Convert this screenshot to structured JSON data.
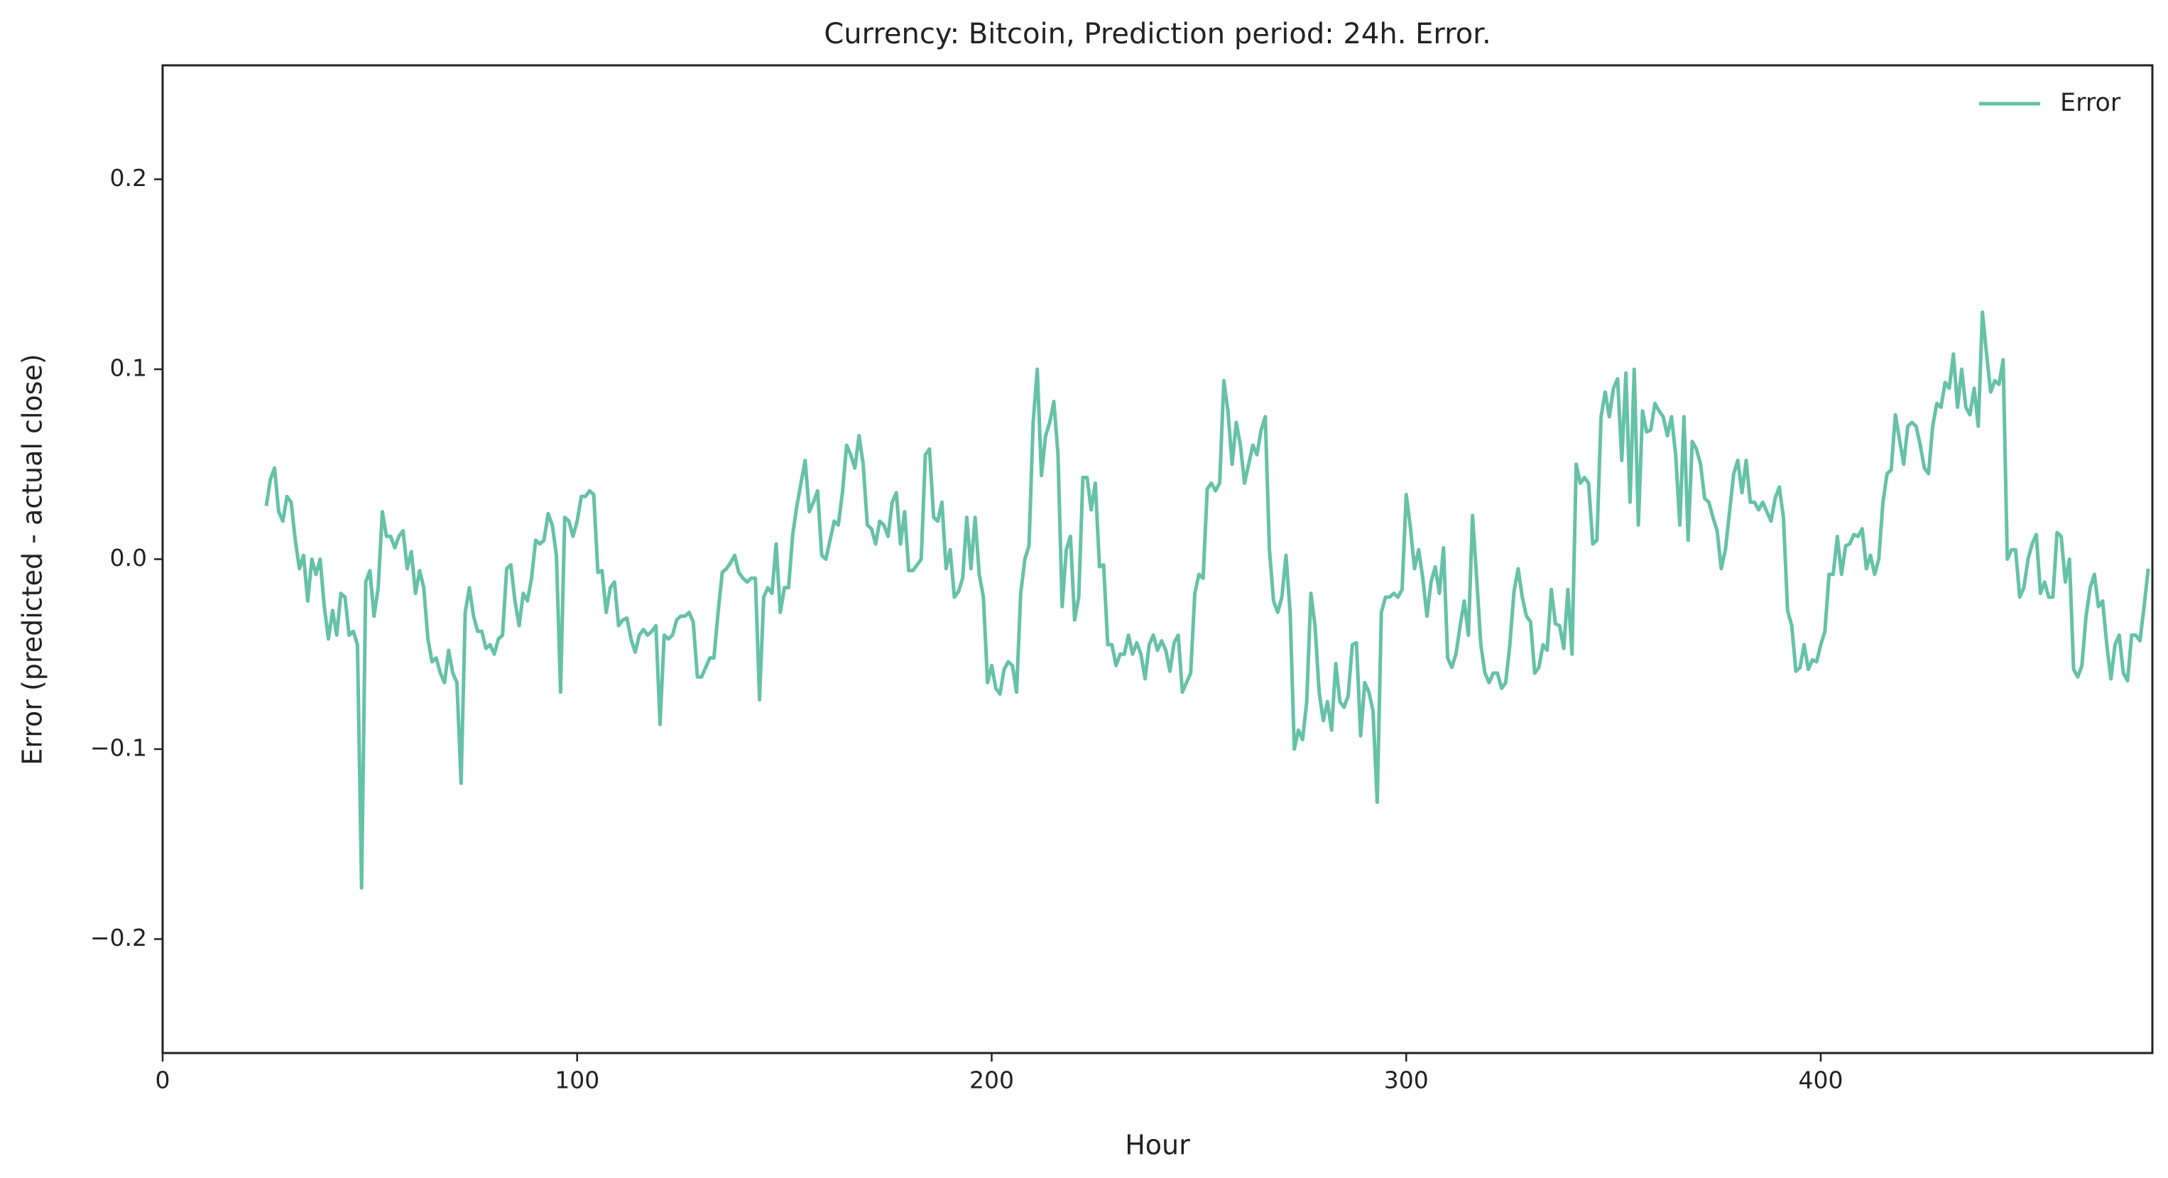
{
  "chart_data": {
    "type": "line",
    "title": "Currency: Bitcoin, Prediction period: 24h. Error.",
    "x_label": "Hour",
    "y_label": "Error (predicted - actual close)",
    "x": [
      25,
      26,
      27,
      28,
      29,
      30,
      31,
      32,
      33,
      34,
      35,
      36,
      37,
      38,
      39,
      40,
      41,
      42,
      43,
      44,
      45,
      46,
      47,
      48,
      49,
      50,
      51,
      52,
      53,
      54,
      55,
      56,
      57,
      58,
      59,
      60,
      61,
      62,
      63,
      64,
      65,
      66,
      67,
      68,
      69,
      70,
      71,
      72,
      73,
      74,
      75,
      76,
      77,
      78,
      79,
      80,
      81,
      82,
      83,
      84,
      85,
      86,
      87,
      88,
      89,
      90,
      91,
      92,
      93,
      94,
      95,
      96,
      97,
      98,
      99,
      100,
      101,
      102,
      103,
      104,
      105,
      106,
      107,
      108,
      109,
      110,
      111,
      112,
      113,
      114,
      115,
      116,
      117,
      118,
      119,
      120,
      121,
      122,
      123,
      124,
      125,
      126,
      127,
      128,
      129,
      130,
      131,
      132,
      133,
      134,
      135,
      136,
      137,
      138,
      139,
      140,
      141,
      142,
      143,
      144,
      145,
      146,
      147,
      148,
      149,
      150,
      151,
      152,
      153,
      154,
      155,
      156,
      157,
      158,
      159,
      160,
      161,
      162,
      163,
      164,
      165,
      166,
      167,
      168,
      169,
      170,
      171,
      172,
      173,
      174,
      175,
      176,
      177,
      178,
      179,
      180,
      181,
      182,
      183,
      184,
      185,
      186,
      187,
      188,
      189,
      190,
      191,
      192,
      193,
      194,
      195,
      196,
      197,
      198,
      199,
      200,
      201,
      202,
      203,
      204,
      205,
      206,
      207,
      208,
      209,
      210,
      211,
      212,
      213,
      214,
      215,
      216,
      217,
      218,
      219,
      220,
      221,
      222,
      223,
      224,
      225,
      226,
      227,
      228,
      229,
      230,
      231,
      232,
      233,
      234,
      235,
      236,
      237,
      238,
      239,
      240,
      241,
      242,
      243,
      244,
      245,
      246,
      247,
      248,
      249,
      250,
      251,
      252,
      253,
      254,
      255,
      256,
      257,
      258,
      259,
      260,
      261,
      262,
      263,
      264,
      265,
      266,
      267,
      268,
      269,
      270,
      271,
      272,
      273,
      274,
      275,
      276,
      277,
      278,
      279,
      280,
      281,
      282,
      283,
      284,
      285,
      286,
      287,
      288,
      289,
      290,
      291,
      292,
      293,
      294,
      295,
      296,
      297,
      298,
      299,
      300,
      301,
      302,
      303,
      304,
      305,
      306,
      307,
      308,
      309,
      310,
      311,
      312,
      313,
      314,
      315,
      316,
      317,
      318,
      319,
      320,
      321,
      322,
      323,
      324,
      325,
      326,
      327,
      328,
      329,
      330,
      331,
      332,
      333,
      334,
      335,
      336,
      337,
      338,
      339,
      340,
      341,
      342,
      343,
      344,
      345,
      346,
      347,
      348,
      349,
      350,
      351,
      352,
      353,
      354,
      355,
      356,
      357,
      358,
      359,
      360,
      361,
      362,
      363,
      364,
      365,
      366,
      367,
      368,
      369,
      370,
      371,
      372,
      373,
      374,
      375,
      376,
      377,
      378,
      379,
      380,
      381,
      382,
      383,
      384,
      385,
      386,
      387,
      388,
      389,
      390,
      391,
      392,
      393,
      394,
      395,
      396,
      397,
      398,
      399,
      400,
      401,
      402,
      403,
      404,
      405,
      406,
      407,
      408,
      409,
      410,
      411,
      412,
      413,
      414,
      415,
      416,
      417,
      418,
      419,
      420,
      421,
      422,
      423,
      424,
      425,
      426,
      427,
      428,
      429,
      430,
      431,
      432,
      433,
      434,
      435,
      436,
      437,
      438,
      439,
      440,
      441,
      442,
      443,
      444,
      445,
      446,
      447,
      448,
      449,
      450,
      451,
      452,
      453,
      454,
      455,
      456,
      457,
      458,
      459,
      460,
      461,
      462,
      463,
      464,
      465,
      466,
      467,
      468,
      469,
      470,
      471,
      472,
      473,
      474,
      475,
      476,
      477,
      478,
      479
    ],
    "series": [
      {
        "name": "Error",
        "color": "#66c2a5",
        "values": [
          0.028,
          0.042,
          0.048,
          0.025,
          0.02,
          0.033,
          0.03,
          0.01,
          -0.005,
          0.002,
          -0.022,
          0.0,
          -0.008,
          0.0,
          -0.025,
          -0.042,
          -0.027,
          -0.04,
          -0.018,
          -0.02,
          -0.04,
          -0.038,
          -0.045,
          -0.173,
          -0.012,
          -0.006,
          -0.03,
          -0.015,
          0.025,
          0.012,
          0.012,
          0.006,
          0.012,
          0.015,
          -0.005,
          0.004,
          -0.018,
          -0.006,
          -0.015,
          -0.042,
          -0.054,
          -0.052,
          -0.06,
          -0.065,
          -0.048,
          -0.06,
          -0.065,
          -0.118,
          -0.028,
          -0.015,
          -0.03,
          -0.038,
          -0.038,
          -0.047,
          -0.045,
          -0.05,
          -0.042,
          -0.04,
          -0.005,
          -0.003,
          -0.022,
          -0.035,
          -0.018,
          -0.022,
          -0.01,
          0.01,
          0.008,
          0.01,
          0.024,
          0.018,
          0.002,
          -0.07,
          0.022,
          0.02,
          0.012,
          0.02,
          0.033,
          0.033,
          0.036,
          0.034,
          -0.007,
          -0.006,
          -0.028,
          -0.015,
          -0.012,
          -0.035,
          -0.032,
          -0.031,
          -0.042,
          -0.049,
          -0.04,
          -0.037,
          -0.04,
          -0.038,
          -0.035,
          -0.087,
          -0.04,
          -0.042,
          -0.04,
          -0.032,
          -0.03,
          -0.03,
          -0.028,
          -0.033,
          -0.062,
          -0.062,
          -0.057,
          -0.052,
          -0.052,
          -0.028,
          -0.007,
          -0.005,
          -0.002,
          0.002,
          -0.007,
          -0.01,
          -0.012,
          -0.01,
          -0.01,
          -0.074,
          -0.02,
          -0.015,
          -0.018,
          0.008,
          -0.028,
          -0.015,
          -0.015,
          0.013,
          0.028,
          0.04,
          0.052,
          0.025,
          0.03,
          0.036,
          0.002,
          0.0,
          0.01,
          0.02,
          0.018,
          0.035,
          0.06,
          0.055,
          0.048,
          0.065,
          0.05,
          0.018,
          0.016,
          0.008,
          0.02,
          0.018,
          0.012,
          0.03,
          0.035,
          0.008,
          0.025,
          -0.006,
          -0.006,
          -0.003,
          0.0,
          0.055,
          0.058,
          0.022,
          0.02,
          0.03,
          -0.005,
          0.005,
          -0.02,
          -0.017,
          -0.01,
          0.022,
          -0.005,
          0.022,
          -0.008,
          -0.02,
          -0.065,
          -0.056,
          -0.068,
          -0.071,
          -0.058,
          -0.054,
          -0.056,
          -0.07,
          -0.018,
          0.0,
          0.007,
          0.072,
          0.1,
          0.044,
          0.065,
          0.072,
          0.083,
          0.055,
          -0.025,
          0.005,
          0.012,
          -0.032,
          -0.02,
          0.043,
          0.043,
          0.026,
          0.04,
          -0.004,
          -0.003,
          -0.045,
          -0.045,
          -0.056,
          -0.05,
          -0.05,
          -0.04,
          -0.05,
          -0.044,
          -0.05,
          -0.063,
          -0.045,
          -0.04,
          -0.048,
          -0.043,
          -0.048,
          -0.059,
          -0.044,
          -0.04,
          -0.07,
          -0.065,
          -0.06,
          -0.018,
          -0.008,
          -0.01,
          0.037,
          0.04,
          0.036,
          0.04,
          0.094,
          0.078,
          0.05,
          0.072,
          0.06,
          0.04,
          0.05,
          0.06,
          0.055,
          0.068,
          0.075,
          0.005,
          -0.022,
          -0.028,
          -0.02,
          0.002,
          -0.028,
          -0.1,
          -0.09,
          -0.095,
          -0.075,
          -0.018,
          -0.035,
          -0.07,
          -0.085,
          -0.075,
          -0.09,
          -0.055,
          -0.075,
          -0.078,
          -0.072,
          -0.045,
          -0.044,
          -0.093,
          -0.065,
          -0.07,
          -0.08,
          -0.128,
          -0.028,
          -0.02,
          -0.02,
          -0.018,
          -0.02,
          -0.016,
          0.034,
          0.017,
          -0.005,
          0.005,
          -0.01,
          -0.03,
          -0.012,
          -0.004,
          -0.018,
          0.006,
          -0.052,
          -0.057,
          -0.05,
          -0.035,
          -0.022,
          -0.04,
          0.023,
          -0.01,
          -0.045,
          -0.06,
          -0.065,
          -0.06,
          -0.06,
          -0.068,
          -0.065,
          -0.045,
          -0.017,
          -0.005,
          -0.02,
          -0.03,
          -0.033,
          -0.06,
          -0.057,
          -0.045,
          -0.048,
          -0.016,
          -0.034,
          -0.035,
          -0.047,
          -0.016,
          -0.05,
          0.05,
          0.04,
          0.043,
          0.04,
          0.008,
          0.01,
          0.075,
          0.088,
          0.075,
          0.09,
          0.095,
          0.052,
          0.098,
          0.03,
          0.1,
          0.018,
          0.078,
          0.067,
          0.068,
          0.082,
          0.078,
          0.075,
          0.065,
          0.075,
          0.055,
          0.018,
          0.075,
          0.01,
          0.062,
          0.058,
          0.05,
          0.032,
          0.03,
          0.022,
          0.015,
          -0.005,
          0.005,
          0.025,
          0.045,
          0.052,
          0.035,
          0.052,
          0.03,
          0.03,
          0.026,
          0.03,
          0.025,
          0.02,
          0.032,
          0.038,
          0.022,
          -0.027,
          -0.035,
          -0.059,
          -0.057,
          -0.045,
          -0.058,
          -0.053,
          -0.054,
          -0.045,
          -0.038,
          -0.008,
          -0.008,
          0.012,
          -0.008,
          0.007,
          0.008,
          0.013,
          0.012,
          0.016,
          -0.005,
          0.002,
          -0.008,
          0.0,
          0.03,
          0.045,
          0.047,
          0.076,
          0.063,
          0.05,
          0.07,
          0.072,
          0.07,
          0.06,
          0.048,
          0.045,
          0.07,
          0.082,
          0.08,
          0.093,
          0.09,
          0.108,
          0.08,
          0.1,
          0.08,
          0.076,
          0.09,
          0.07,
          0.13,
          0.108,
          0.088,
          0.094,
          0.092,
          0.105,
          0.0,
          0.005,
          0.005,
          -0.02,
          -0.015,
          0.0,
          0.008,
          0.013,
          -0.018,
          -0.012,
          -0.02,
          -0.02,
          0.014,
          0.012,
          -0.012,
          0.0,
          -0.058,
          -0.062,
          -0.056,
          -0.03,
          -0.015,
          -0.008,
          -0.025,
          -0.022,
          -0.045,
          -0.063,
          -0.045,
          -0.04,
          -0.06,
          -0.064,
          -0.04,
          -0.04,
          -0.043,
          -0.025,
          -0.005
        ]
      }
    ],
    "xlim": [
      0,
      480
    ],
    "xticks": [
      0,
      100,
      200,
      300,
      400
    ],
    "ylim": [
      -0.26,
      0.26
    ],
    "yticks": [
      {
        "value": -0.2,
        "label": "−0.2"
      },
      {
        "value": -0.1,
        "label": "−0.1"
      },
      {
        "value": 0,
        "label": "0.0"
      },
      0.1,
      0.2
    ],
    "legend": "upper right",
    "grid": false
  }
}
